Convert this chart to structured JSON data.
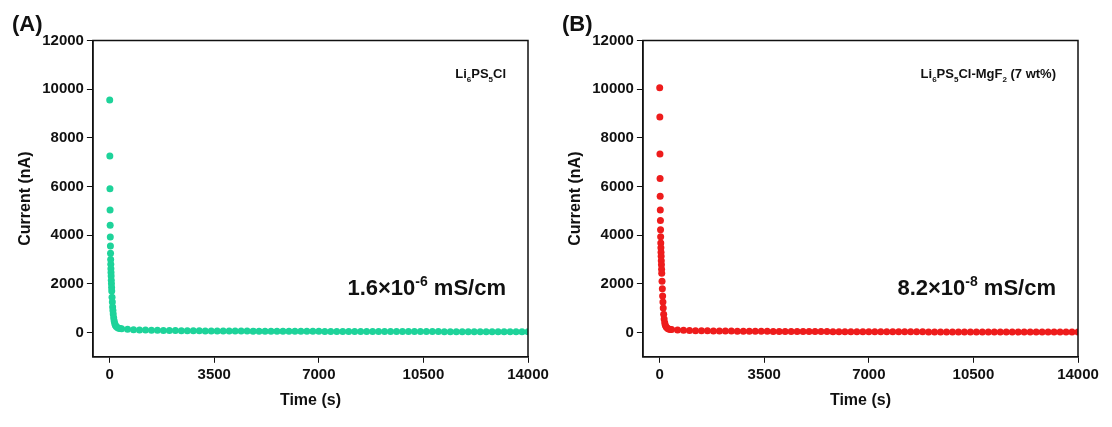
{
  "chart_data": [
    {
      "type": "scatter",
      "title": "(A)",
      "xlabel": "Time (s)",
      "ylabel": "Current (nA)",
      "annotations": [
        "Li$_{6}$PS$_{5}$Cl",
        "1.6×10$^{-6}$ mS/cm"
      ],
      "xlim": [
        -560,
        14000
      ],
      "xticks": [
        0,
        3500,
        7000,
        10500,
        14000
      ],
      "ylim": [
        -1000,
        12000
      ],
      "yticks": [
        0,
        2000,
        4000,
        6000,
        8000,
        10000,
        12000
      ],
      "legend": false,
      "marker": "circle",
      "series": [
        {
          "color": "#1ed39a",
          "x": [
            2,
            6,
            10,
            14,
            18,
            22,
            26,
            30,
            34,
            38,
            42,
            46,
            50,
            55,
            60,
            65,
            70,
            80,
            90,
            100,
            110,
            120,
            135,
            150,
            170,
            190,
            220,
            260,
            300,
            350,
            400,
            600,
            800,
            1000,
            1200,
            1400,
            1600,
            1800,
            2000,
            2200,
            2400,
            2600,
            2800,
            3000,
            3200,
            3400,
            3600,
            3800,
            4000,
            4200,
            4400,
            4600,
            4800,
            5000,
            5200,
            5400,
            5600,
            5800,
            6000,
            6200,
            6400,
            6600,
            6800,
            7000,
            7200,
            7400,
            7600,
            7800,
            8000,
            8200,
            8400,
            8600,
            8800,
            9000,
            9200,
            9400,
            9600,
            9800,
            10000,
            10200,
            10400,
            10600,
            10800,
            11000,
            11200,
            11400,
            11600,
            11800,
            12000,
            12200,
            12400,
            12600,
            12800,
            13000,
            13200,
            13400,
            13600,
            13800,
            14000
          ],
          "values": [
            9550,
            7250,
            5900,
            5030,
            4400,
            3920,
            3550,
            3250,
            3000,
            2800,
            2620,
            2460,
            2320,
            2150,
            2000,
            1850,
            1700,
            1450,
            1250,
            1050,
            900,
            760,
            600,
            480,
            380,
            300,
            240,
            200,
            175,
            160,
            150,
            130,
            115,
            105,
            98,
            92,
            88,
            84,
            80,
            77,
            74,
            71,
            69,
            67,
            65,
            63,
            61,
            60,
            58,
            57,
            56,
            55,
            54,
            53,
            52,
            51,
            50,
            49,
            48,
            47,
            47,
            46,
            45,
            45,
            44,
            43,
            43,
            42,
            42,
            41,
            41,
            40,
            40,
            39,
            39,
            38,
            38,
            37,
            37,
            36,
            36,
            35,
            35,
            35,
            34,
            34,
            33,
            33,
            33,
            32,
            32,
            32,
            31,
            31,
            31,
            30,
            30,
            30,
            30
          ]
        }
      ]
    },
    {
      "type": "scatter",
      "title": "(B)",
      "xlabel": "Time (s)",
      "ylabel": "Current (nA)",
      "annotations": [
        "Li$_{6}$PS$_{5}$Cl-MgF$_{2}$ (7 wt%)",
        "8.2×10$^{-8}$ mS/cm"
      ],
      "xlim": [
        -560,
        14000
      ],
      "xticks": [
        0,
        3500,
        7000,
        10500,
        14000
      ],
      "ylim": [
        -1000,
        12000
      ],
      "yticks": [
        0,
        2000,
        4000,
        6000,
        8000,
        10000,
        12000
      ],
      "legend": false,
      "marker": "circle",
      "series": [
        {
          "color": "#ee1c1c",
          "x": [
            2,
            6,
            10,
            14,
            18,
            22,
            26,
            30,
            34,
            38,
            42,
            46,
            50,
            55,
            60,
            65,
            70,
            80,
            90,
            100,
            110,
            120,
            135,
            150,
            170,
            190,
            220,
            260,
            300,
            350,
            400,
            600,
            800,
            1000,
            1200,
            1400,
            1600,
            1800,
            2000,
            2200,
            2400,
            2600,
            2800,
            3000,
            3200,
            3400,
            3600,
            3800,
            4000,
            4200,
            4400,
            4600,
            4800,
            5000,
            5200,
            5400,
            5600,
            5800,
            6000,
            6200,
            6400,
            6600,
            6800,
            7000,
            7200,
            7400,
            7600,
            7800,
            8000,
            8200,
            8400,
            8600,
            8800,
            9000,
            9200,
            9400,
            9600,
            9800,
            10000,
            10200,
            10400,
            10600,
            10800,
            11000,
            11200,
            11400,
            11600,
            11800,
            12000,
            12200,
            12400,
            12600,
            12800,
            13000,
            13200,
            13400,
            13600,
            13800,
            14000
          ],
          "values": [
            10050,
            8850,
            7330,
            6330,
            5600,
            5030,
            4600,
            4220,
            3930,
            3680,
            3480,
            3300,
            3130,
            2950,
            2780,
            2600,
            2430,
            2100,
            1800,
            1500,
            1250,
            1000,
            750,
            550,
            400,
            300,
            220,
            170,
            140,
            125,
            120,
            100,
            88,
            80,
            74,
            70,
            66,
            63,
            60,
            57,
            55,
            53,
            51,
            49,
            47,
            46,
            45,
            44,
            43,
            42,
            41,
            40,
            39,
            38,
            37,
            36,
            35,
            34,
            33,
            32,
            32,
            31,
            30,
            30,
            29,
            28,
            28,
            27,
            27,
            26,
            26,
            25,
            25,
            24,
            24,
            23,
            23,
            22,
            22,
            21,
            21,
            20,
            20,
            20,
            19,
            19,
            18,
            18,
            18,
            17,
            17,
            17,
            16,
            16,
            16,
            15,
            15,
            15,
            15
          ]
        }
      ]
    }
  ]
}
